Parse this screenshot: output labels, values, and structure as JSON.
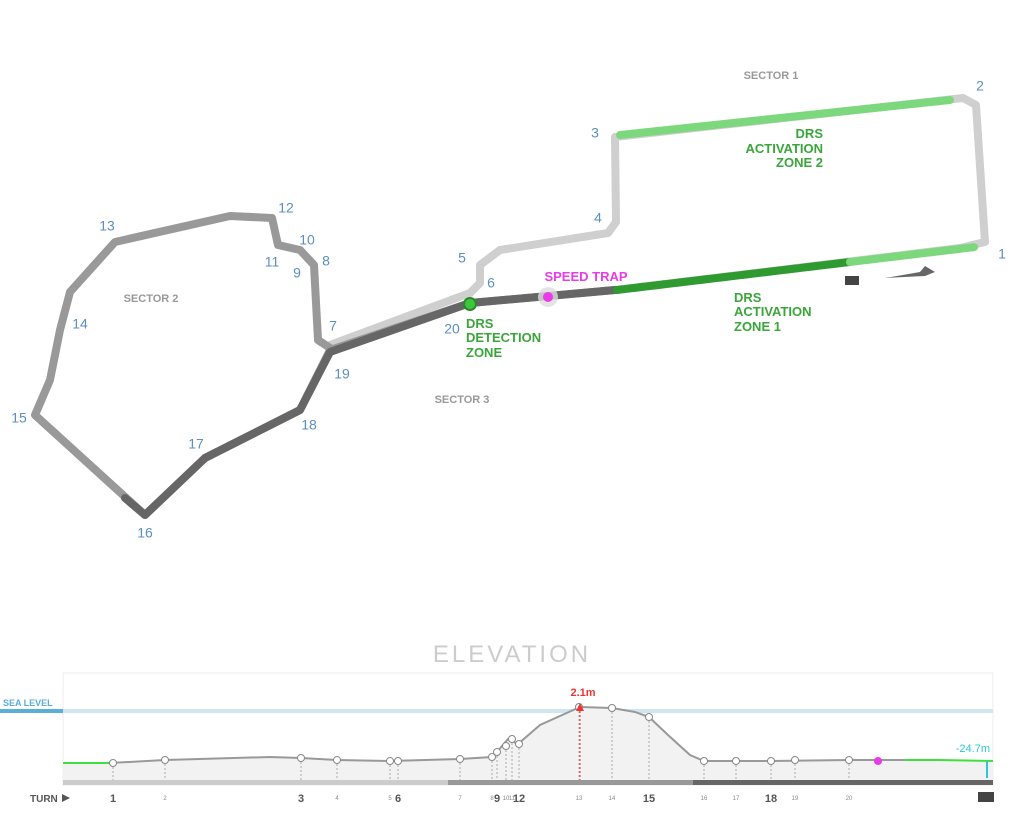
{
  "sectors": [
    "SECTOR 1",
    "SECTOR 2",
    "SECTOR 3"
  ],
  "turns": [
    "1",
    "2",
    "3",
    "4",
    "5",
    "6",
    "7",
    "8",
    "9",
    "10",
    "11",
    "12",
    "13",
    "14",
    "15",
    "16",
    "17",
    "18",
    "19",
    "20"
  ],
  "drs_zone_2": [
    "DRS",
    "ACTIVATION",
    "ZONE 2"
  ],
  "drs_zone_1": [
    "DRS",
    "ACTIVATION",
    "ZONE 1"
  ],
  "drs_detection": [
    "DRS",
    "DETECTION",
    "ZONE"
  ],
  "speed_trap": "SPEED TRAP",
  "elevation": {
    "title": "ELEVATION",
    "sea_level": "SEA LEVEL",
    "max_label": "2.1m",
    "min_label": "-24.7m",
    "turn_label": "TURN"
  }
}
